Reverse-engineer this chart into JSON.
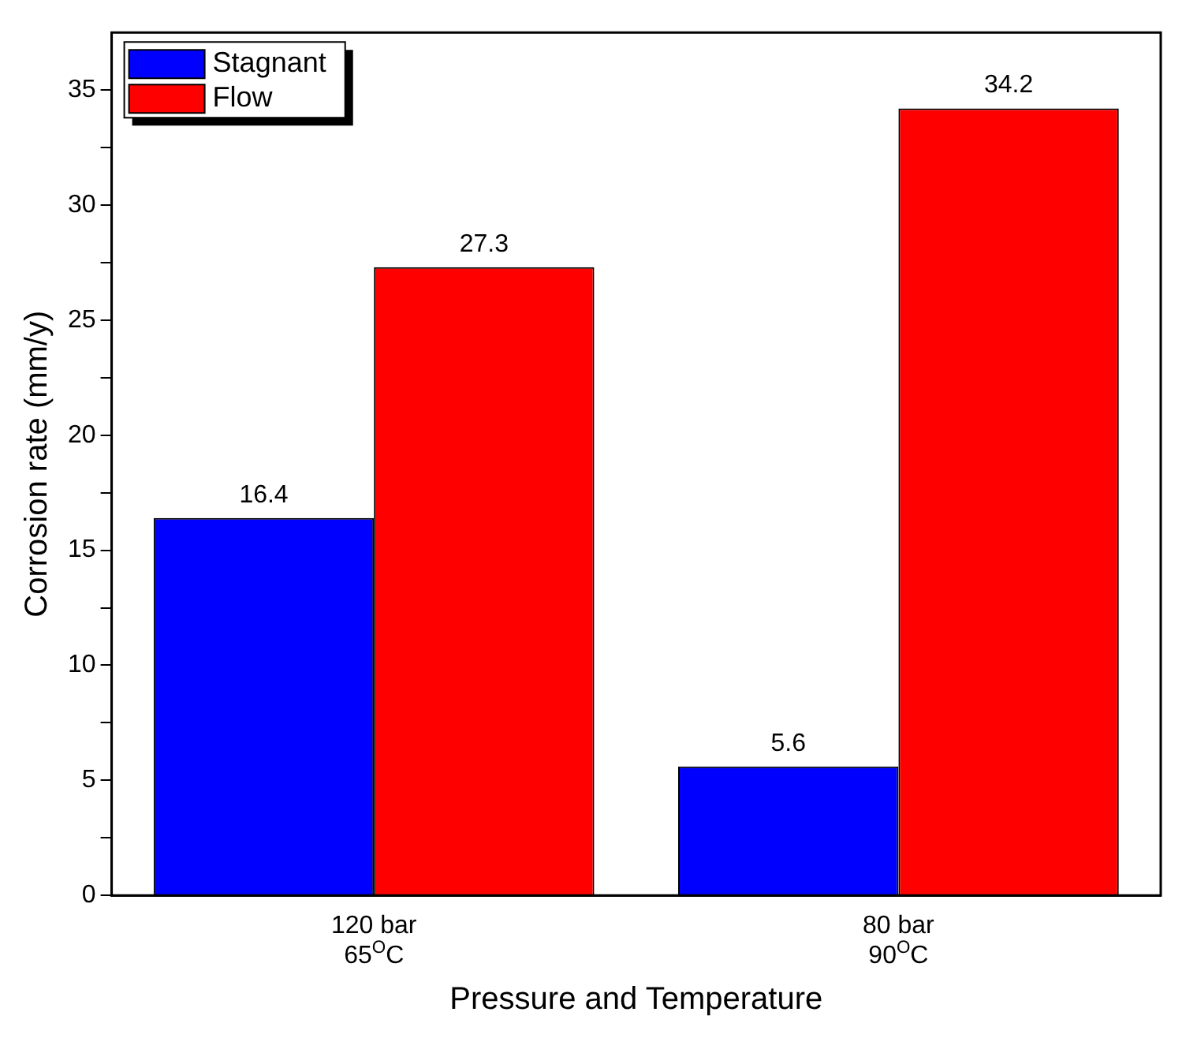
{
  "chart_data": {
    "type": "bar",
    "xlabel": "Pressure and Temperature",
    "ylabel": "Corrosion rate (mm/y)",
    "categories": [
      "120 bar\n65$^{O}$C",
      "80 bar\n90$^{O}$C"
    ],
    "series": [
      {
        "name": "Stagnant",
        "color": "#0000ff",
        "values": [
          16.4,
          5.6
        ]
      },
      {
        "name": "Flow",
        "color": "#ff0000",
        "values": [
          27.3,
          34.2
        ]
      }
    ],
    "ylim": [
      0,
      37.5
    ],
    "yticks": [
      0,
      {
        "value": 2.5,
        "label": null
      },
      5,
      {
        "value": 7.5,
        "label": null
      },
      10,
      {
        "value": 12.5,
        "label": null
      },
      15,
      {
        "value": 17.5,
        "label": null
      },
      20,
      {
        "value": 22.5,
        "label": null
      },
      25,
      {
        "value": 27.5,
        "label": null
      },
      30,
      {
        "value": 32.5,
        "label": null
      },
      35
    ],
    "data_labels": true,
    "legend": "top left",
    "grid": false
  }
}
